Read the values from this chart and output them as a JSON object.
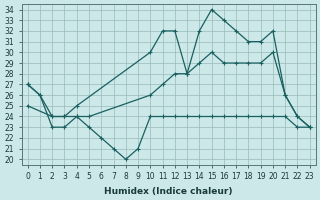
{
  "xlabel": "Humidex (Indice chaleur)",
  "ylabel": "",
  "bg_color": "#cce8e8",
  "grid_color": "#99bbbb",
  "line_color": "#1a6060",
  "xlim": [
    -0.5,
    23.5
  ],
  "ylim": [
    19.5,
    34.5
  ],
  "yticks": [
    20,
    21,
    22,
    23,
    24,
    25,
    26,
    27,
    28,
    29,
    30,
    31,
    32,
    33,
    34
  ],
  "xticks": [
    0,
    1,
    2,
    3,
    4,
    5,
    6,
    7,
    8,
    9,
    10,
    11,
    12,
    13,
    14,
    15,
    16,
    17,
    18,
    19,
    20,
    21,
    22,
    23
  ],
  "line1_x": [
    0,
    1,
    2,
    3,
    4,
    5,
    6,
    7,
    8,
    9,
    10,
    11,
    12,
    13,
    14,
    15,
    16,
    17,
    18,
    19,
    20,
    21,
    22,
    23
  ],
  "line1_y": [
    27,
    26,
    23,
    23,
    24,
    23,
    22,
    21,
    20,
    21,
    24,
    24,
    24,
    24,
    24,
    24,
    24,
    24,
    24,
    24,
    24,
    24,
    23,
    23
  ],
  "line2_x": [
    0,
    2,
    3,
    4,
    5,
    10,
    11,
    12,
    13,
    14,
    15,
    16,
    17,
    18,
    19,
    20,
    21,
    22,
    23
  ],
  "line2_y": [
    25,
    24,
    24,
    24,
    24,
    26,
    27,
    28,
    28,
    29,
    30,
    29,
    29,
    29,
    29,
    30,
    26,
    24,
    23
  ],
  "line3_x": [
    0,
    1,
    2,
    3,
    4,
    10,
    11,
    12,
    13,
    14,
    15,
    16,
    17,
    18,
    19,
    20,
    21,
    22,
    23
  ],
  "line3_y": [
    27,
    26,
    24,
    24,
    25,
    30,
    32,
    32,
    28,
    32,
    34,
    33,
    32,
    31,
    31,
    32,
    26,
    24,
    23
  ]
}
